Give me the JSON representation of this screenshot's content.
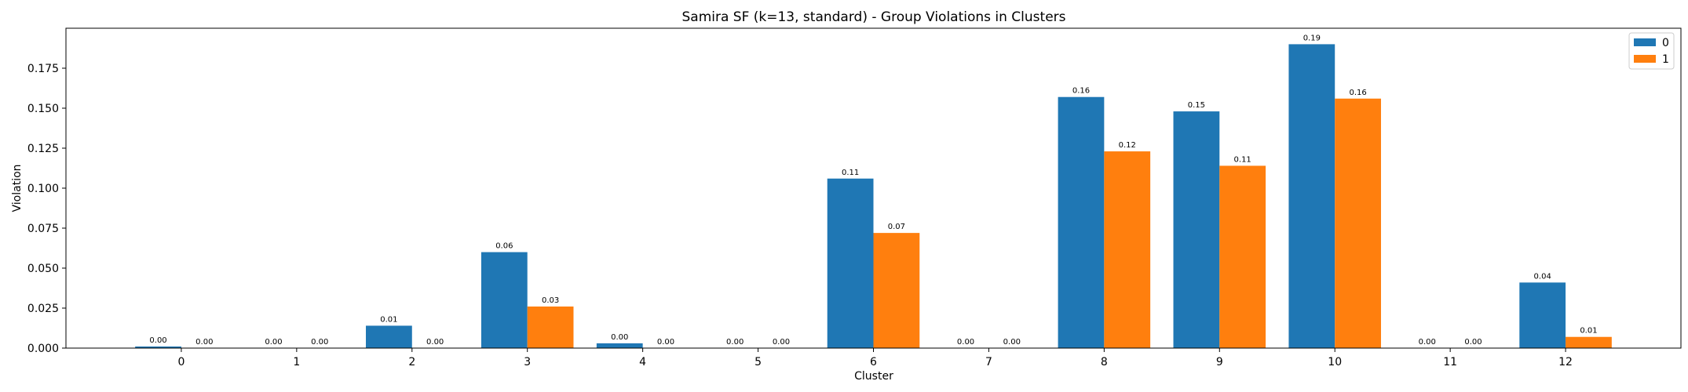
{
  "chart_data": {
    "type": "bar",
    "title": "Samira SF (k=13, standard) - Group Violations in Clusters",
    "xlabel": "Cluster",
    "ylabel": "Violation",
    "categories": [
      "0",
      "1",
      "2",
      "3",
      "4",
      "5",
      "6",
      "7",
      "8",
      "9",
      "10",
      "11",
      "12"
    ],
    "series": [
      {
        "name": "0",
        "color": "#1f77b4",
        "values": [
          0.001,
          0.0,
          0.014,
          0.06,
          0.003,
          0.0,
          0.106,
          0.0,
          0.157,
          0.148,
          0.19,
          0.0,
          0.041
        ],
        "labels": [
          "0.00",
          "0.00",
          "0.01",
          "0.06",
          "0.00",
          "0.00",
          "0.11",
          "0.00",
          "0.16",
          "0.15",
          "0.19",
          "0.00",
          "0.04"
        ]
      },
      {
        "name": "1",
        "color": "#ff7f0e",
        "values": [
          0.0,
          0.0,
          0.0,
          0.026,
          0.0,
          0.0,
          0.072,
          0.0,
          0.123,
          0.114,
          0.156,
          0.0,
          0.007
        ],
        "labels": [
          "0.00",
          "0.00",
          "0.00",
          "0.03",
          "0.00",
          "0.00",
          "0.07",
          "0.00",
          "0.12",
          "0.11",
          "0.16",
          "0.00",
          "0.01"
        ]
      }
    ],
    "yticks": [
      "0.000",
      "0.025",
      "0.050",
      "0.075",
      "0.100",
      "0.125",
      "0.150",
      "0.175"
    ],
    "ylim": [
      0,
      0.2
    ],
    "grid": false,
    "legend_position": "top-right"
  }
}
